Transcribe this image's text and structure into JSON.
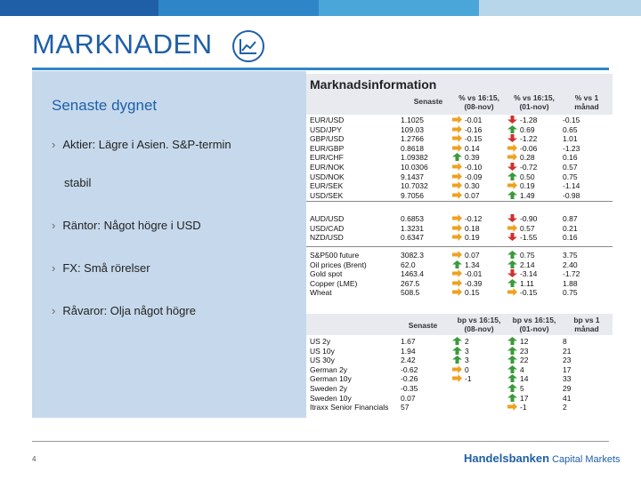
{
  "header": {
    "title": "MARKNADEN",
    "colors": {
      "primary": "#1f5fa8",
      "accent": "#2e86c8",
      "panel": "#c6d9ec"
    },
    "icon": "line-chart-icon"
  },
  "left_panel": {
    "subtitle": "Senaste dygnet",
    "bullets": [
      {
        "text": "Aktier: Lägre i Asien. S&P-termin",
        "continuation": "stabil"
      },
      {
        "text": "Räntor: Något högre i USD"
      },
      {
        "text": "FX: Små rörelser"
      },
      {
        "text": "Råvaror: Olja något högre"
      }
    ],
    "bullet_glyph": "›"
  },
  "market_info": {
    "title": "Marknadsinformation",
    "headers": {
      "last": "Senaste",
      "col1": [
        "% vs 16:15,",
        "(08-nov)"
      ],
      "col2": [
        "% vs 16:15,",
        "(01-nov)"
      ],
      "col3": [
        "% vs 1",
        "månad"
      ]
    },
    "fx1": [
      {
        "name": "EUR/USD",
        "last": "1.1025",
        "a1": "right",
        "v1": "-0.01",
        "a2": "down",
        "v2": "-1.28",
        "v3": "-0.15"
      },
      {
        "name": "USD/JPY",
        "last": "109.03",
        "a1": "right",
        "v1": "-0.16",
        "a2": "up",
        "v2": "0.69",
        "v3": "0.65"
      },
      {
        "name": "GBP/USD",
        "last": "1.2766",
        "a1": "right",
        "v1": "-0.15",
        "a2": "down",
        "v2": "-1.22",
        "v3": "1.01"
      },
      {
        "name": "EUR/GBP",
        "last": "0.8618",
        "a1": "right",
        "v1": "0.14",
        "a2": "right",
        "v2": "-0.06",
        "v3": "-1.23"
      },
      {
        "name": "EUR/CHF",
        "last": "1.09382",
        "a1": "up",
        "v1": "0.39",
        "a2": "right",
        "v2": "0.28",
        "v3": "0.16"
      },
      {
        "name": "EUR/NOK",
        "last": "10.0306",
        "a1": "right",
        "v1": "-0.10",
        "a2": "down",
        "v2": "-0.72",
        "v3": "0.57"
      },
      {
        "name": "USD/NOK",
        "last": "9.1437",
        "a1": "right",
        "v1": "-0.09",
        "a2": "up",
        "v2": "0.50",
        "v3": "0.75"
      },
      {
        "name": "EUR/SEK",
        "last": "10.7032",
        "a1": "right",
        "v1": "0.30",
        "a2": "right",
        "v2": "0.19",
        "v3": "-1.14"
      },
      {
        "name": "USD/SEK",
        "last": "9.7056",
        "a1": "right",
        "v1": "0.07",
        "a2": "up",
        "v2": "1.49",
        "v3": "-0.98"
      }
    ],
    "fx2": [
      {
        "name": "AUD/USD",
        "last": "0.6853",
        "a1": "right",
        "v1": "-0.12",
        "a2": "down",
        "v2": "-0.90",
        "v3": "0.87"
      },
      {
        "name": "USD/CAD",
        "last": "1.3231",
        "a1": "right",
        "v1": "0.18",
        "a2": "right",
        "v2": "0.57",
        "v3": "0.21"
      },
      {
        "name": "NZD/USD",
        "last": "0.6347",
        "a1": "right",
        "v1": "0.19",
        "a2": "down",
        "v2": "-1.55",
        "v3": "0.16"
      }
    ],
    "commodities": [
      {
        "name": "S&P500 future",
        "last": "3082.3",
        "a1": "right",
        "v1": "0.07",
        "a2": "up",
        "v2": "0.75",
        "v3": "3.75"
      },
      {
        "name": "Oil prices (Brent)",
        "last": "62.0",
        "a1": "up",
        "v1": "1.34",
        "a2": "up",
        "v2": "2.14",
        "v3": "2.40"
      },
      {
        "name": "Gold spot",
        "last": "1463.4",
        "a1": "right",
        "v1": "-0.01",
        "a2": "down",
        "v2": "-3.14",
        "v3": "-1.72"
      },
      {
        "name": "Copper (LME)",
        "last": "267.5",
        "a1": "right",
        "v1": "-0.39",
        "a2": "up",
        "v2": "1.11",
        "v3": "1.88"
      },
      {
        "name": "Wheat",
        "last": "508.5",
        "a1": "right",
        "v1": "0.15",
        "a2": "right",
        "v2": "-0.15",
        "v3": "0.75"
      }
    ],
    "bond_headers": {
      "last": "Senaste",
      "col1": [
        "bp vs 16:15,",
        "(08-nov)"
      ],
      "col2": [
        "bp vs 16:15,",
        "(01-nov)"
      ],
      "col3": [
        "bp vs 1",
        "månad"
      ]
    },
    "bonds": [
      {
        "name": "US 2y",
        "last": "1.67",
        "a1": "up",
        "v1": "2",
        "a2": "up",
        "v2": "12",
        "v3": "8"
      },
      {
        "name": "US 10y",
        "last": "1.94",
        "a1": "up",
        "v1": "3",
        "a2": "up",
        "v2": "23",
        "v3": "21"
      },
      {
        "name": "US 30y",
        "last": "2.42",
        "a1": "up",
        "v1": "3",
        "a2": "up",
        "v2": "22",
        "v3": "23"
      },
      {
        "name": "German 2y",
        "last": "-0.62",
        "a1": "right",
        "v1": "0",
        "a2": "up",
        "v2": "4",
        "v3": "17"
      },
      {
        "name": "German 10y",
        "last": "-0.26",
        "a1": "right",
        "v1": "-1",
        "a2": "up",
        "v2": "14",
        "v3": "33"
      },
      {
        "name": "Sweden 2y",
        "last": "-0.35",
        "a1": "",
        "v1": "",
        "a2": "up",
        "v2": "5",
        "v3": "29"
      },
      {
        "name": "Sweden 10y",
        "last": "0.07",
        "a1": "",
        "v1": "",
        "a2": "up",
        "v2": "17",
        "v3": "41"
      },
      {
        "name": "Itraxx Senior Financials",
        "last": "57",
        "a1": "",
        "v1": "",
        "a2": "right",
        "v2": "-1",
        "v3": "2"
      }
    ]
  },
  "footer": {
    "page_number": "4",
    "brand": "Handelsbanken",
    "brand_sub": "Capital Markets"
  }
}
